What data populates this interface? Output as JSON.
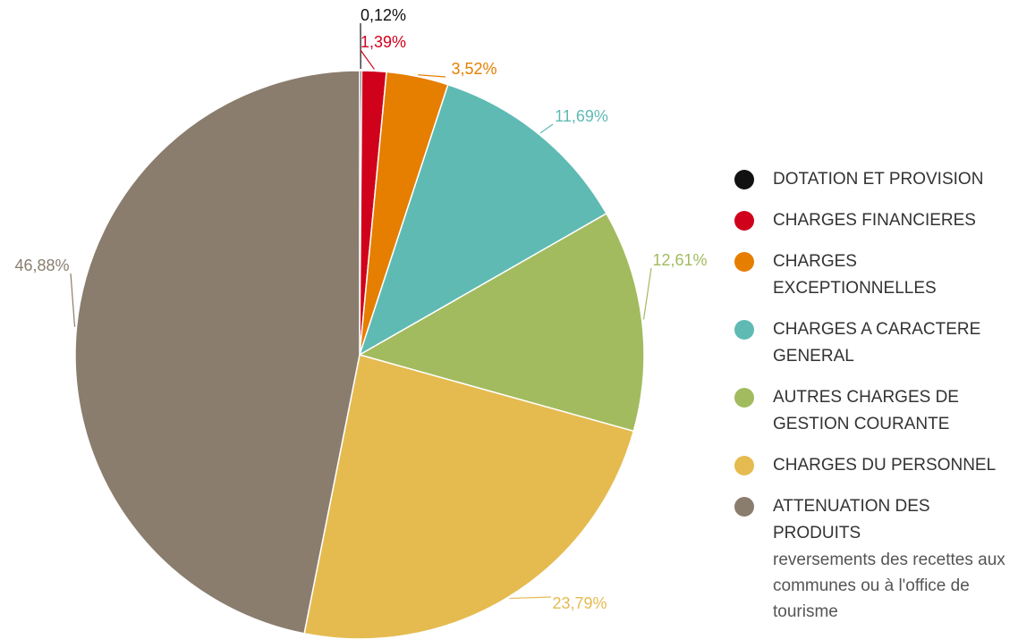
{
  "chart_data": {
    "type": "pie",
    "categories": [
      "DOTATION ET PROVISION",
      "CHARGES FINANCIERES",
      "CHARGES EXCEPTIONNELLES",
      "CHARGES A CARACTERE GENERAL",
      "AUTRES CHARGES DE GESTION COURANTE",
      "CHARGES DU PERSONNEL",
      "ATTENUATION DES PRODUITS"
    ],
    "values": [
      0.12,
      1.39,
      3.52,
      11.69,
      12.61,
      23.79,
      46.88
    ],
    "value_labels": [
      "0,12%",
      "1,39%",
      "3,52%",
      "11,69%",
      "12,61%",
      "23,79%",
      "46,88%"
    ],
    "colors": [
      "#111111",
      "#d0021b",
      "#e67e00",
      "#5fbab4",
      "#a2bb5e",
      "#e5bb50",
      "#8a7d6e"
    ],
    "annotations": [
      {
        "category": "ATTENUATION DES PRODUITS",
        "text": "reversements des recettes aux communes ou à l'office de tourisme"
      }
    ]
  }
}
